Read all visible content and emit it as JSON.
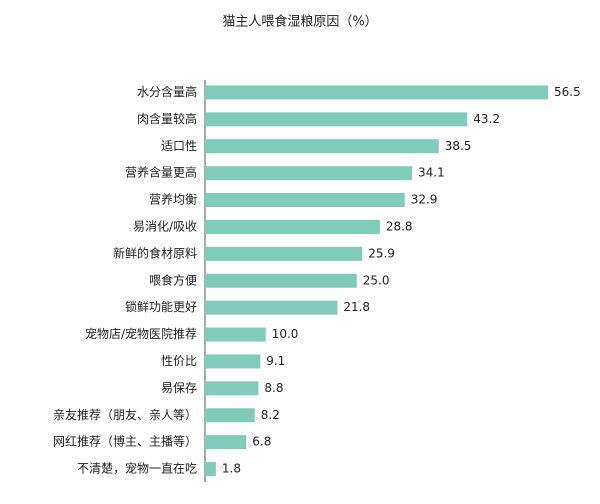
{
  "chart_data": {
    "type": "bar",
    "orientation": "horizontal",
    "title": "猫主人喂食湿粮原因（%）",
    "categories": [
      "水分含量高",
      "肉含量较高",
      "适口性",
      "营养含量更高",
      "营养均衡",
      "易消化/吸收",
      "新鲜的食材原料",
      "喂食方便",
      "锁鲜功能更好",
      "宠物店/宠物医院推荐",
      "性价比",
      "易保存",
      "亲友推荐（朋友、亲人等）",
      "网红推荐（博主、主播等）",
      "不清楚，宠物一直在吃"
    ],
    "values": [
      56.5,
      43.2,
      38.5,
      34.1,
      32.9,
      28.8,
      25.9,
      25.0,
      21.8,
      10.0,
      9.1,
      8.8,
      8.2,
      6.8,
      1.8
    ],
    "value_labels": [
      "56.5",
      "43.2",
      "38.5",
      "34.1",
      "32.9",
      "28.8",
      "25.9",
      "25.0",
      "21.8",
      "10.0",
      "9.1",
      "8.8",
      "8.2",
      "6.8",
      "1.8"
    ],
    "color": "#80cbb9"
  }
}
